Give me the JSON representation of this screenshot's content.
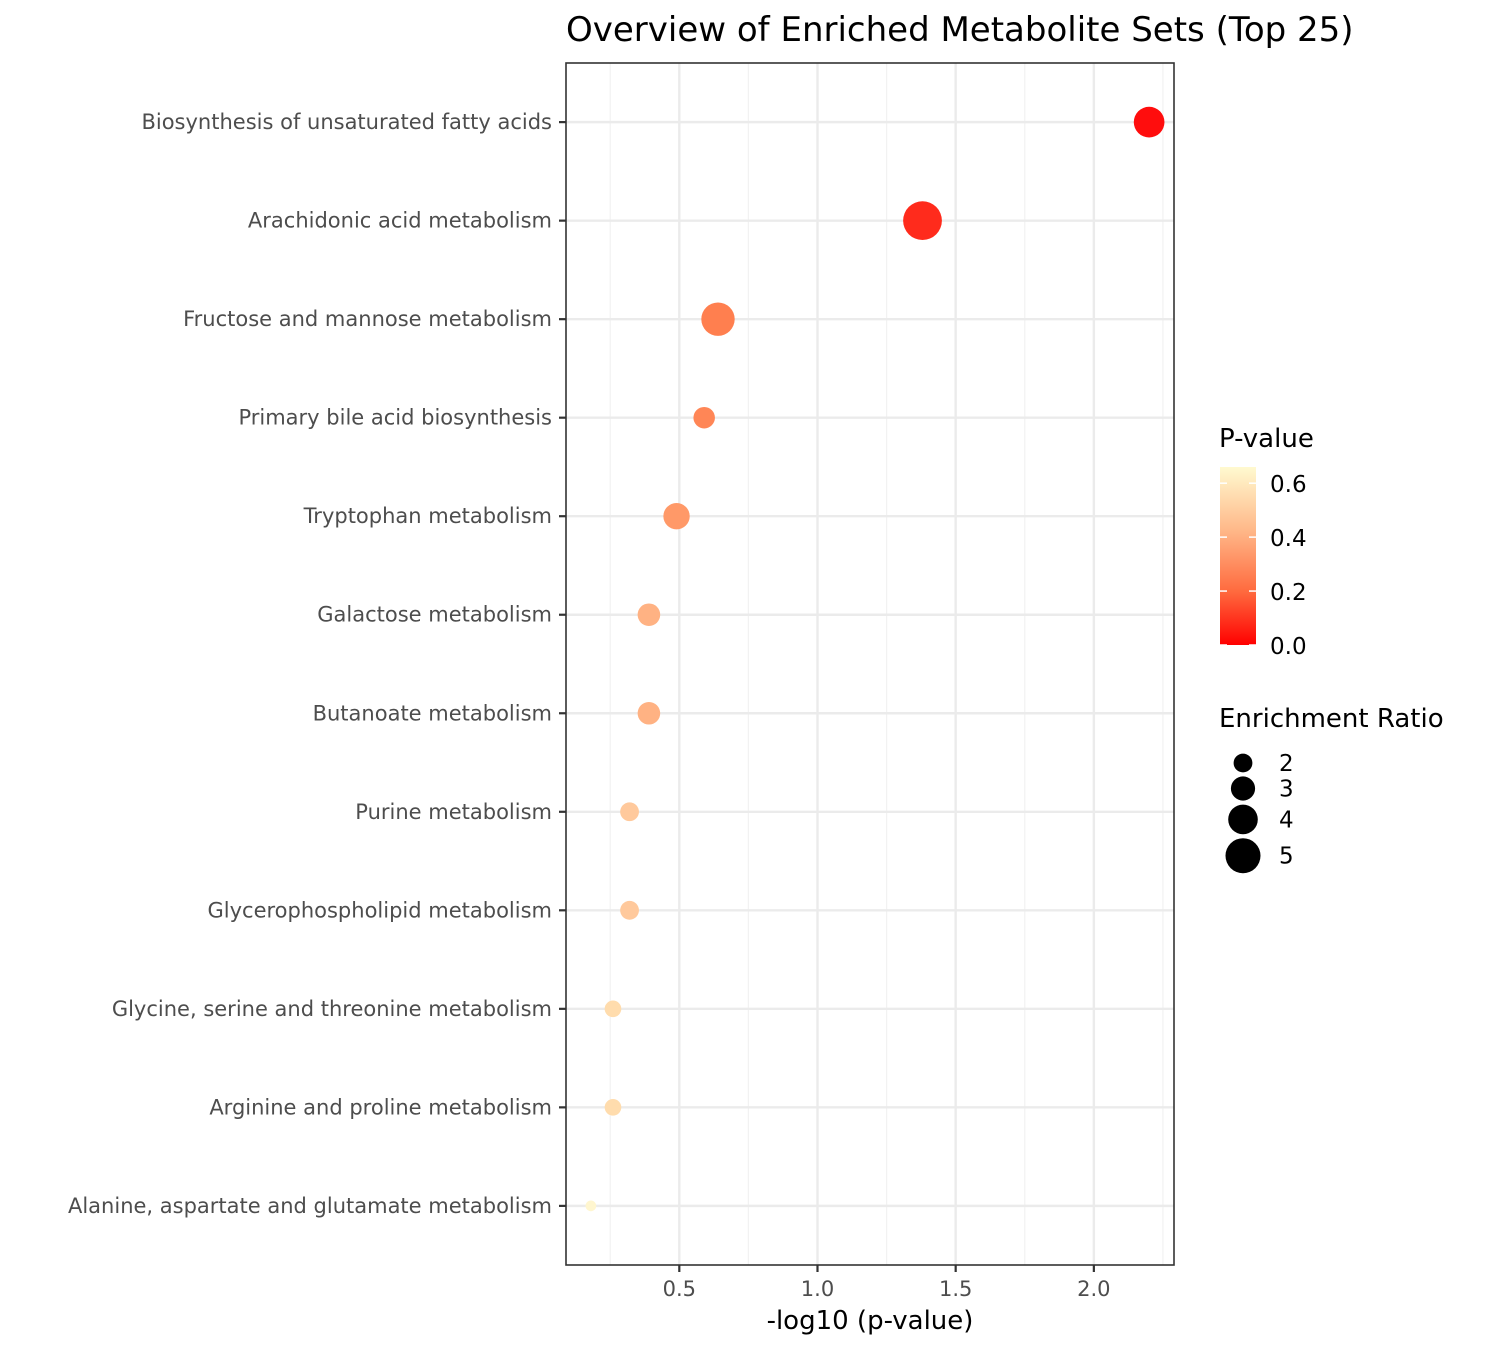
{
  "chart_data": {
    "type": "scatter",
    "title": "Overview of Enriched Metabolite Sets (Top 25)",
    "xlabel": "-log10 (p-value)",
    "ylabel": "",
    "xlim": [
      0.09,
      2.29
    ],
    "x_ticks": [
      0.5,
      1.0,
      1.5,
      2.0
    ],
    "x_tick_labels": [
      "0.5",
      "1.0",
      "1.5",
      "2.0"
    ],
    "grid": true,
    "points": [
      {
        "name": "Biosynthesis of unsaturated fatty acids",
        "x": 2.2,
        "p_value": 0.006,
        "enrichment_ratio": 4.2,
        "color": "#ff0d0d"
      },
      {
        "name": "Arachidonic acid metabolism",
        "x": 1.38,
        "p_value": 0.042,
        "enrichment_ratio": 5.7,
        "color": "#ff2b1c"
      },
      {
        "name": "Fructose and mannose metabolism",
        "x": 0.64,
        "p_value": 0.23,
        "enrichment_ratio": 4.7,
        "color": "#ff7f4f"
      },
      {
        "name": "Primary bile acid biosynthesis",
        "x": 0.59,
        "p_value": 0.26,
        "enrichment_ratio": 2.5,
        "color": "#ff8656"
      },
      {
        "name": "Tryptophan metabolism",
        "x": 0.49,
        "p_value": 0.32,
        "enrichment_ratio": 3.4,
        "color": "#ff9968"
      },
      {
        "name": "Galactose metabolism",
        "x": 0.39,
        "p_value": 0.41,
        "enrichment_ratio": 2.7,
        "color": "#ffb283"
      },
      {
        "name": "Butanoate metabolism",
        "x": 0.39,
        "p_value": 0.41,
        "enrichment_ratio": 2.7,
        "color": "#ffb283"
      },
      {
        "name": "Purine metabolism",
        "x": 0.32,
        "p_value": 0.48,
        "enrichment_ratio": 2.0,
        "color": "#ffc99c"
      },
      {
        "name": "Glycerophospholipid metabolism",
        "x": 0.32,
        "p_value": 0.48,
        "enrichment_ratio": 2.0,
        "color": "#ffc99c"
      },
      {
        "name": "Glycine, serine and threonine metabolism",
        "x": 0.26,
        "p_value": 0.55,
        "enrichment_ratio": 1.6,
        "color": "#ffdcad"
      },
      {
        "name": "Arginine and proline metabolism",
        "x": 0.26,
        "p_value": 0.55,
        "enrichment_ratio": 1.6,
        "color": "#ffdcad"
      },
      {
        "name": "Alanine, aspartate and glutamate metabolism",
        "x": 0.18,
        "p_value": 0.66,
        "enrichment_ratio": 0.5,
        "color": "#fff6cf"
      }
    ],
    "legend": {
      "color_title": "P-value",
      "color_scale": {
        "low_color": "#ff0000",
        "high_color": "#fffad0",
        "min": 0.0,
        "max": 0.66
      },
      "color_ticks": [
        0.0,
        0.2,
        0.4,
        0.6
      ],
      "color_tick_labels": [
        "0.0",
        "0.2",
        "0.4",
        "0.6"
      ],
      "size_title": "Enrichment Ratio",
      "size_values": [
        2,
        3,
        4,
        5
      ],
      "size_labels": [
        "2",
        "3",
        "4",
        "5"
      ],
      "placement": "right"
    }
  }
}
